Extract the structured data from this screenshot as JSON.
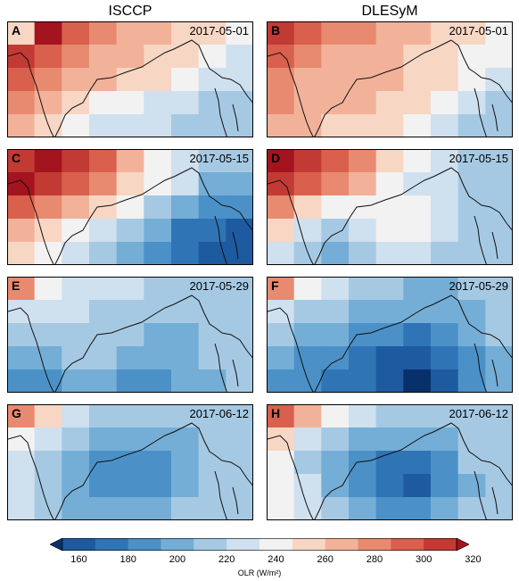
{
  "columns": [
    "ISCCP",
    "DLESyM"
  ],
  "panels": [
    {
      "label": "A",
      "date": "2017-05-01",
      "source": "ISCCP"
    },
    {
      "label": "B",
      "date": "2017-05-01",
      "source": "DLESyM"
    },
    {
      "label": "C",
      "date": "2017-05-15",
      "source": "ISCCP"
    },
    {
      "label": "D",
      "date": "2017-05-15",
      "source": "DLESyM"
    },
    {
      "label": "E",
      "date": "2017-05-29",
      "source": "ISCCP"
    },
    {
      "label": "F",
      "date": "2017-05-29",
      "source": "DLESyM"
    },
    {
      "label": "G",
      "date": "2017-06-12",
      "source": "ISCCP"
    },
    {
      "label": "H",
      "date": "2017-06-12",
      "source": "DLESyM"
    }
  ],
  "colorbar": {
    "title": "OLR (W/m²)",
    "ticks": [
      "160",
      "180",
      "200",
      "220",
      "240",
      "260",
      "280",
      "300",
      "320"
    ],
    "min": 150,
    "max": 330,
    "colors": [
      "#08306b",
      "#1d5aa0",
      "#2f74b5",
      "#4b91c8",
      "#74aed6",
      "#a6c9e3",
      "#cfe0ef",
      "#f2f2f2",
      "#f7d6c4",
      "#f2b29a",
      "#e88a70",
      "#d8604c",
      "#c23a34",
      "#a3141f"
    ]
  }
}
